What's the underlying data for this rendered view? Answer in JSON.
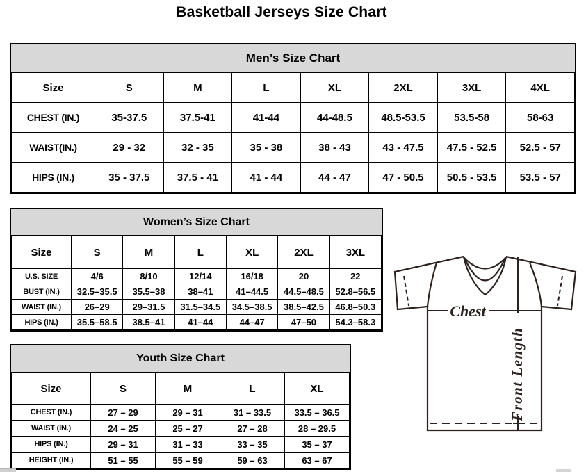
{
  "page": {
    "title": "Basketball Jerseys Size Chart"
  },
  "colors": {
    "header_bg": "#d8d8d8",
    "border": "#000000",
    "jersey_line": "#2b211e"
  },
  "tables": {
    "men": {
      "title": "Men’s Size Chart",
      "header": [
        "Size",
        "S",
        "M",
        "L",
        "XL",
        "2XL",
        "3XL",
        "4XL"
      ],
      "rows": [
        {
          "label": "CHEST (IN.)",
          "values": [
            "35-37.5",
            "37.5-41",
            "41-44",
            "44-48.5",
            "48.5-53.5",
            "53.5-58",
            "58-63"
          ]
        },
        {
          "label": "WAIST(IN.)",
          "values": [
            "29 - 32",
            "32 - 35",
            "35 - 38",
            "38 - 43",
            "43 - 47.5",
            "47.5 - 52.5",
            "52.5 - 57"
          ]
        },
        {
          "label": "HIPS (IN.)",
          "values": [
            "35 - 37.5",
            "37.5 - 41",
            "41 - 44",
            "44 - 47",
            "47 - 50.5",
            "50.5 - 53.5",
            "53.5 - 57"
          ]
        }
      ]
    },
    "women": {
      "title": "Women’s Size Chart",
      "header": [
        "Size",
        "S",
        "M",
        "L",
        "XL",
        "2XL",
        "3XL"
      ],
      "rows": [
        {
          "label": "U.S. SIZE",
          "values": [
            "4/6",
            "8/10",
            "12/14",
            "16/18",
            "20",
            "22"
          ]
        },
        {
          "label": "BUST (IN.)",
          "values": [
            "32.5–35.5",
            "35.5–38",
            "38–41",
            "41–44.5",
            "44.5–48.5",
            "52.8–56.5"
          ]
        },
        {
          "label": "WAIST (IN.)",
          "values": [
            "26–29",
            "29–31.5",
            "31.5–34.5",
            "34.5–38.5",
            "38.5–42.5",
            "46.8–50.3"
          ]
        },
        {
          "label": "HIPS (IN.)",
          "values": [
            "35.5–58.5",
            "38.5–41",
            "41–44",
            "44–47",
            "47–50",
            "54.3–58.3"
          ]
        }
      ]
    },
    "youth": {
      "title": "Youth Size Chart",
      "header": [
        "Size",
        "S",
        "M",
        "L",
        "XL"
      ],
      "rows": [
        {
          "label": "CHEST (IN.)",
          "values": [
            "27 – 29",
            "29 – 31",
            "31 – 33.5",
            "33.5 – 36.5"
          ]
        },
        {
          "label": "WAIST (IN.)",
          "values": [
            "24 – 25",
            "25 – 27",
            "27 – 28",
            "28 – 29.5"
          ]
        },
        {
          "label": "HIPS (IN.)",
          "values": [
            "29 – 31",
            "31 – 33",
            "33 – 35",
            "35 – 37"
          ]
        },
        {
          "label": "HEIGHT (IN.)",
          "values": [
            "51 – 55",
            "55 – 59",
            "59 – 63",
            "63 – 67"
          ]
        }
      ]
    }
  },
  "diagram": {
    "chest_label": "Chest",
    "front_length_label": "Front Length"
  }
}
